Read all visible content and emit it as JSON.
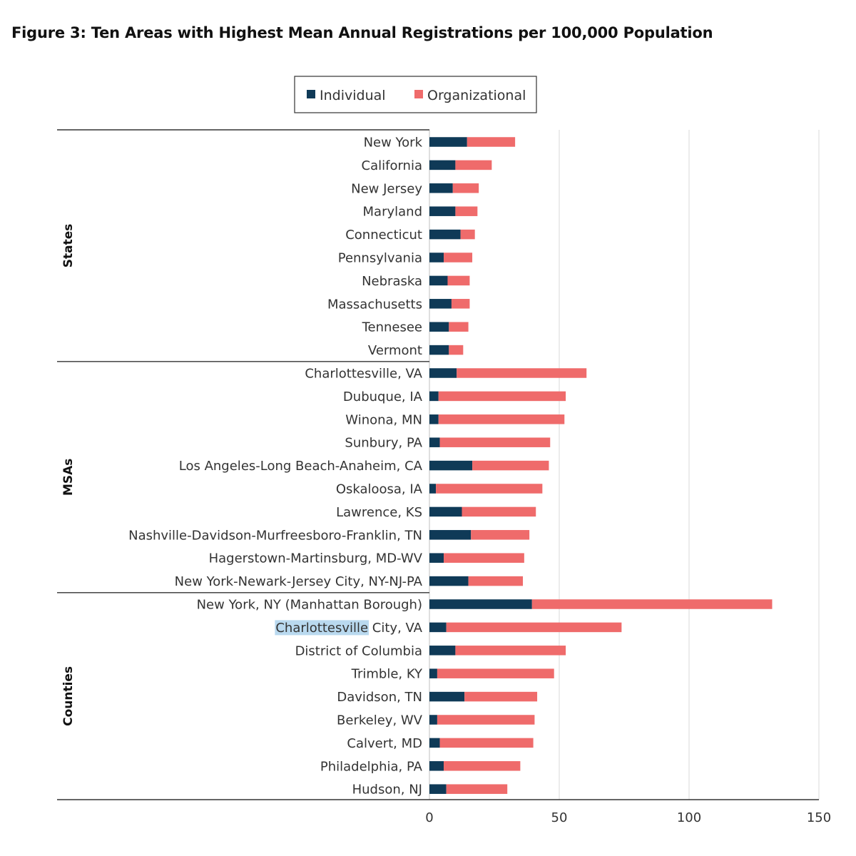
{
  "title": "Figure 3: Ten Areas with Highest Mean Annual Registrations per 100,000 Population",
  "colors": {
    "individual": "#0f3a57",
    "organizational": "#ef6b6b",
    "highlight": "#b9d9ef"
  },
  "chart_data": {
    "type": "bar",
    "orientation": "horizontal",
    "stacked": true,
    "xlim": [
      0,
      150
    ],
    "xticks": [
      0,
      50,
      100,
      150
    ],
    "grid": true,
    "legend_position": "top-center",
    "series_names": [
      "Individual",
      "Organizational"
    ],
    "groups": [
      {
        "name": "States",
        "items": [
          {
            "label": "New York",
            "individual": 14.5,
            "organizational": 18.5
          },
          {
            "label": "California",
            "individual": 10,
            "organizational": 14
          },
          {
            "label": "New Jersey",
            "individual": 9,
            "organizational": 10
          },
          {
            "label": "Maryland",
            "individual": 10,
            "organizational": 8.5
          },
          {
            "label": "Connecticut",
            "individual": 12,
            "organizational": 5.5
          },
          {
            "label": "Pennsylvania",
            "individual": 5.5,
            "organizational": 11
          },
          {
            "label": "Nebraska",
            "individual": 7,
            "organizational": 8.5
          },
          {
            "label": "Massachusetts",
            "individual": 8.5,
            "organizational": 7
          },
          {
            "label": "Tennesee",
            "individual": 7.5,
            "organizational": 7.5
          },
          {
            "label": "Vermont",
            "individual": 7.5,
            "organizational": 5.5
          }
        ]
      },
      {
        "name": "MSAs",
        "items": [
          {
            "label": "Charlottesville, VA",
            "individual": 10.5,
            "organizational": 50
          },
          {
            "label": "Dubuque, IA",
            "individual": 3.5,
            "organizational": 49
          },
          {
            "label": "Winona, MN",
            "individual": 3.5,
            "organizational": 48.5
          },
          {
            "label": "Sunbury, PA",
            "individual": 4,
            "organizational": 42.5
          },
          {
            "label": "Los Angeles-Long Beach-Anaheim, CA",
            "individual": 16.5,
            "organizational": 29.5
          },
          {
            "label": "Oskaloosa, IA",
            "individual": 2.5,
            "organizational": 41
          },
          {
            "label": "Lawrence, KS",
            "individual": 12.5,
            "organizational": 28.5
          },
          {
            "label": "Nashville-Davidson-Murfreesboro-Franklin, TN",
            "individual": 16,
            "organizational": 22.5
          },
          {
            "label": "Hagerstown-Martinsburg, MD-WV",
            "individual": 5.5,
            "organizational": 31
          },
          {
            "label": "New York-Newark-Jersey City, NY-NJ-PA",
            "individual": 15,
            "organizational": 21
          }
        ]
      },
      {
        "name": "Counties",
        "items": [
          {
            "label": "New York, NY (Manhattan Borough)",
            "individual": 39.5,
            "organizational": 92.5
          },
          {
            "label": "Charlottesville City, VA",
            "label_highlight": "Charlottesville",
            "label_rest": " City, VA",
            "individual": 6.5,
            "organizational": 67.5
          },
          {
            "label": "District of Columbia",
            "individual": 10,
            "organizational": 42.5
          },
          {
            "label": "Trimble, KY",
            "individual": 3,
            "organizational": 45
          },
          {
            "label": "Davidson, TN",
            "individual": 13.5,
            "organizational": 28
          },
          {
            "label": "Berkeley, WV",
            "individual": 3,
            "organizational": 37.5
          },
          {
            "label": "Calvert, MD",
            "individual": 4,
            "organizational": 36
          },
          {
            "label": "Philadelphia, PA",
            "individual": 5.5,
            "organizational": 29.5
          },
          {
            "label": "Hudson, NJ",
            "individual": 6.5,
            "organizational": 23.5
          }
        ]
      }
    ]
  }
}
